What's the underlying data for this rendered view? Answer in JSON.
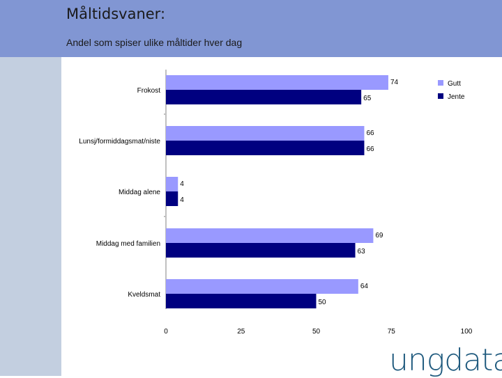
{
  "header": {
    "title": "Måltidsvaner:",
    "subtitle": "Andel som spiser ulike måltider hver dag"
  },
  "logo": {
    "text": "ungdata"
  },
  "colors": {
    "header_bg": "#8196d3",
    "sidebar_bg": "#c3cfe0",
    "gutt": "#9999ff",
    "jente": "#000080",
    "logo": "#1f5a7e"
  },
  "chart_data": {
    "type": "bar",
    "orientation": "horizontal",
    "title": "",
    "categories": [
      "Frokost",
      "Lunsj/formiddagsmat/niste",
      "Middag alene",
      "Middag med familien",
      "Kveldsmat"
    ],
    "series": [
      {
        "name": "Gutt",
        "color": "#9999ff",
        "values": [
          74,
          66,
          4,
          69,
          64
        ]
      },
      {
        "name": "Jente",
        "color": "#000080",
        "values": [
          65,
          66,
          4,
          63,
          50
        ]
      }
    ],
    "xlim": [
      0,
      100
    ],
    "xticks": [
      0,
      25,
      50,
      75,
      100
    ],
    "legend_position": "top-right"
  }
}
